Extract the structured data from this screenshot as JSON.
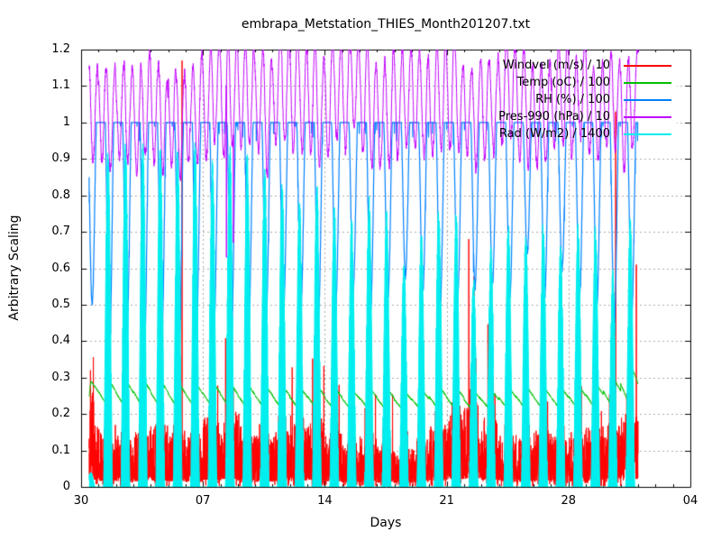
{
  "chart_data": {
    "type": "line",
    "title": "embrapa_Metstation_THIES_Month201207.txt",
    "xlabel": "Days",
    "ylabel": "Arbitrary Scaling",
    "background": "#ffffff",
    "border_color": "#000000",
    "grid": {
      "show": true,
      "style": "dashed",
      "color": "#a9a9a9"
    },
    "x_axis": {
      "label": "Days",
      "span_days": 35,
      "minor_tick_every_days": 1,
      "ticks": [
        {
          "label": "30",
          "day": 0
        },
        {
          "label": "07",
          "day": 7
        },
        {
          "label": "14",
          "day": 14
        },
        {
          "label": "21",
          "day": 21
        },
        {
          "label": "28",
          "day": 28
        },
        {
          "label": "04",
          "day": 35
        }
      ]
    },
    "y_axis": {
      "label": "Arbitrary Scaling",
      "min": 0,
      "max": 1.2,
      "tick_step": 0.1,
      "tick_labels": [
        "0",
        "0.1",
        "0.2",
        "0.3",
        "0.4",
        "0.5",
        "0.6",
        "0.7",
        "0.8",
        "0.9",
        "1",
        "1.1",
        "1.2"
      ]
    },
    "legend_position": "top-right-inside",
    "sampling_minutes": 10,
    "data_start_day": 0.46,
    "data_end_day": 32.0,
    "series": [
      {
        "name": "Windvel (m/s) / 10",
        "color": "#ff0000",
        "kind": "noisy-wind",
        "daily_base": [
          0.1,
          0.09,
          0.08,
          0.09,
          0.1,
          0.09,
          0.08,
          0.11,
          0.12,
          0.1,
          0.08,
          0.09,
          0.1,
          0.11,
          0.09,
          0.07,
          0.08,
          0.07,
          0.06,
          0.07,
          0.1,
          0.12,
          0.13,
          0.11,
          0.09,
          0.08,
          0.09,
          0.08,
          0.09,
          0.1,
          0.11,
          0.12
        ],
        "daily_gust": [
          0.25,
          0.22,
          0.2,
          0.22,
          0.25,
          0.28,
          0.22,
          0.3,
          0.35,
          0.28,
          0.25,
          0.25,
          0.28,
          0.35,
          0.25,
          0.2,
          0.22,
          0.2,
          0.18,
          0.2,
          0.3,
          0.38,
          0.42,
          0.35,
          0.25,
          0.22,
          0.25,
          0.22,
          0.25,
          0.28,
          0.32,
          0.35
        ],
        "spikes": [
          {
            "day": 5.8,
            "value": 1.17
          },
          {
            "day": 13.55,
            "value": 0.48
          },
          {
            "day": 22.27,
            "value": 0.68
          },
          {
            "day": 30.71,
            "value": 1.03
          },
          {
            "day": 31.9,
            "value": 0.61
          }
        ]
      },
      {
        "name": "Temp (oC) / 100",
        "color": "#00c000",
        "kind": "diurnal-temp",
        "daily_min": [
          0.232,
          0.228,
          0.226,
          0.228,
          0.226,
          0.224,
          0.224,
          0.226,
          0.224,
          0.222,
          0.222,
          0.22,
          0.218,
          0.22,
          0.218,
          0.216,
          0.218,
          0.216,
          0.215,
          0.216,
          0.219,
          0.218,
          0.215,
          0.215,
          0.218,
          0.22,
          0.219,
          0.219,
          0.22,
          0.222,
          0.226,
          0.232
        ],
        "daily_max": [
          0.29,
          0.295,
          0.292,
          0.296,
          0.292,
          0.288,
          0.285,
          0.288,
          0.285,
          0.282,
          0.28,
          0.278,
          0.274,
          0.278,
          0.272,
          0.268,
          0.272,
          0.27,
          0.262,
          0.266,
          0.276,
          0.272,
          0.262,
          0.264,
          0.272,
          0.276,
          0.274,
          0.272,
          0.278,
          0.284,
          0.3,
          0.335
        ]
      },
      {
        "name": "RH (%) / 100",
        "color": "#0080ff",
        "kind": "diurnal-rh",
        "cap": 1.0,
        "daily_min": [
          0.5,
          0.38,
          0.4,
          0.36,
          0.4,
          0.38,
          0.44,
          0.42,
          0.4,
          0.44,
          0.46,
          0.48,
          0.5,
          0.46,
          0.5,
          0.54,
          0.48,
          0.52,
          0.58,
          0.54,
          0.5,
          0.52,
          0.55,
          0.56,
          0.52,
          0.64,
          0.52,
          0.6,
          0.52,
          0.5,
          0.45,
          0.48
        ]
      },
      {
        "name": "Pres-990 (hPa) / 10",
        "color": "#c000ff",
        "kind": "semidiurnal-pressure",
        "daily_base": [
          1.02,
          1.03,
          1.04,
          1.03,
          1.02,
          1.04,
          1.05,
          1.04,
          1.05,
          1.06,
          1.05,
          1.06,
          1.07,
          1.06,
          1.07,
          1.06,
          1.05,
          1.06,
          1.05,
          1.06,
          1.05,
          1.04,
          1.03,
          1.04,
          1.05,
          1.04,
          1.03,
          1.04,
          1.03,
          1.02,
          1.03,
          1.04
        ],
        "daily_amp": [
          0.13,
          0.14,
          0.13,
          0.14,
          0.13,
          0.14,
          0.14,
          0.14,
          0.15,
          0.14,
          0.15,
          0.15,
          0.15,
          0.15,
          0.15,
          0.14,
          0.15,
          0.14,
          0.14,
          0.14,
          0.14,
          0.14,
          0.13,
          0.14,
          0.14,
          0.13,
          0.14,
          0.13,
          0.13,
          0.14,
          0.13,
          0.13
        ],
        "dips": [
          {
            "day": 8.35,
            "value": 0.63
          },
          {
            "day": 8.75,
            "value": 0.67
          }
        ]
      },
      {
        "name": "Rad (W/m2) / 1400",
        "color": "#00eeee",
        "kind": "solar",
        "fill": true,
        "daily_peak": [
          0.04,
          0.93,
          0.95,
          0.96,
          0.95,
          0.93,
          0.95,
          0.9,
          0.95,
          0.93,
          0.88,
          0.84,
          0.8,
          0.84,
          0.78,
          0.74,
          0.8,
          0.76,
          0.62,
          0.7,
          0.78,
          0.76,
          0.58,
          0.66,
          0.73,
          0.7,
          0.73,
          0.67,
          0.73,
          0.72,
          0.6,
          0.74
        ]
      }
    ]
  }
}
